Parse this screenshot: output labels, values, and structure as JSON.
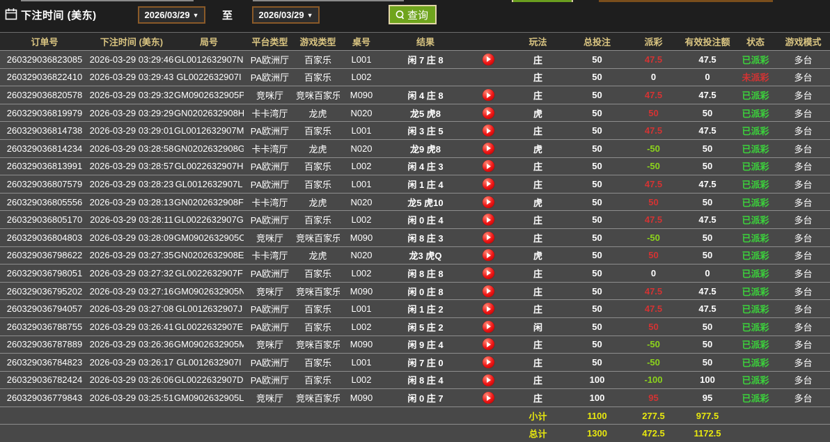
{
  "toolbar": {
    "label": "下注时间 (美东)",
    "date_from": "2026/03/29",
    "to_label": "至",
    "date_to": "2026/03/29",
    "search_label": "查询"
  },
  "colors": {
    "accent_gold": "#d9c481",
    "win_red": "#d43333",
    "loss_green": "#8cd41c",
    "status_paid_green": "#3bd33b",
    "status_unpaid_red": "#d43333",
    "summary_yellow": "#e8e80e",
    "button_green": "#6fa41d",
    "date_border_brown": "#8a5a28"
  },
  "table": {
    "headers": [
      "订单号",
      "下注时间 (美东)",
      "局号",
      "平台类型",
      "游戏类型",
      "桌号",
      "结果",
      "玩法",
      "总投注",
      "派彩",
      "有效投注额",
      "状态",
      "游戏模式"
    ],
    "rows": [
      {
        "order": "260329036823085",
        "time": "2026-03-29 03:29:46",
        "round": "GL0012632907N",
        "platform": "PA欧洲厅",
        "game_type": "百家乐",
        "table_no": "L001",
        "result": "闲 7 庄 8",
        "has_replay": true,
        "play": "庄",
        "bet": "50",
        "payout": "47.5",
        "payout_class": "pos",
        "valid": "47.5",
        "status": "已派彩",
        "status_class": "paid",
        "mode": "多台"
      },
      {
        "order": "260329036822410",
        "time": "2026-03-29 03:29:43",
        "round": "GL0022632907I",
        "platform": "PA欧洲厅",
        "game_type": "百家乐",
        "table_no": "L002",
        "result": "",
        "has_replay": false,
        "play": "庄",
        "bet": "50",
        "payout": "0",
        "payout_class": "zero",
        "valid": "0",
        "status": "未派彩",
        "status_class": "unpaid",
        "mode": "多台"
      },
      {
        "order": "260329036820578",
        "time": "2026-03-29 03:29:32",
        "round": "GM0902632905P",
        "platform": "竞咪厅",
        "game_type": "竞咪百家乐",
        "table_no": "M090",
        "result": "闲 4 庄 8",
        "has_replay": true,
        "play": "庄",
        "bet": "50",
        "payout": "47.5",
        "payout_class": "pos",
        "valid": "47.5",
        "status": "已派彩",
        "status_class": "paid",
        "mode": "多台"
      },
      {
        "order": "260329036819979",
        "time": "2026-03-29 03:29:29",
        "round": "GN0202632908H",
        "platform": "卡卡湾厅",
        "game_type": "龙虎",
        "table_no": "N020",
        "result": "龙5 虎8",
        "has_replay": true,
        "play": "虎",
        "bet": "50",
        "payout": "50",
        "payout_class": "pos",
        "valid": "50",
        "status": "已派彩",
        "status_class": "paid",
        "mode": "多台"
      },
      {
        "order": "260329036814738",
        "time": "2026-03-29 03:29:01",
        "round": "GL0012632907M",
        "platform": "PA欧洲厅",
        "game_type": "百家乐",
        "table_no": "L001",
        "result": "闲 3 庄 5",
        "has_replay": true,
        "play": "庄",
        "bet": "50",
        "payout": "47.5",
        "payout_class": "pos",
        "valid": "47.5",
        "status": "已派彩",
        "status_class": "paid",
        "mode": "多台"
      },
      {
        "order": "260329036814234",
        "time": "2026-03-29 03:28:58",
        "round": "GN0202632908G",
        "platform": "卡卡湾厅",
        "game_type": "龙虎",
        "table_no": "N020",
        "result": "龙9 虎8",
        "has_replay": true,
        "play": "虎",
        "bet": "50",
        "payout": "-50",
        "payout_class": "neg",
        "valid": "50",
        "status": "已派彩",
        "status_class": "paid",
        "mode": "多台"
      },
      {
        "order": "260329036813991",
        "time": "2026-03-29 03:28:57",
        "round": "GL0022632907H",
        "platform": "PA欧洲厅",
        "game_type": "百家乐",
        "table_no": "L002",
        "result": "闲 4 庄 3",
        "has_replay": true,
        "play": "庄",
        "bet": "50",
        "payout": "-50",
        "payout_class": "neg",
        "valid": "50",
        "status": "已派彩",
        "status_class": "paid",
        "mode": "多台"
      },
      {
        "order": "260329036807579",
        "time": "2026-03-29 03:28:23",
        "round": "GL0012632907L",
        "platform": "PA欧洲厅",
        "game_type": "百家乐",
        "table_no": "L001",
        "result": "闲 1 庄 4",
        "has_replay": true,
        "play": "庄",
        "bet": "50",
        "payout": "47.5",
        "payout_class": "pos",
        "valid": "47.5",
        "status": "已派彩",
        "status_class": "paid",
        "mode": "多台"
      },
      {
        "order": "260329036805556",
        "time": "2026-03-29 03:28:13",
        "round": "GN0202632908F",
        "platform": "卡卡湾厅",
        "game_type": "龙虎",
        "table_no": "N020",
        "result": "龙5 虎10",
        "has_replay": true,
        "play": "虎",
        "bet": "50",
        "payout": "50",
        "payout_class": "pos",
        "valid": "50",
        "status": "已派彩",
        "status_class": "paid",
        "mode": "多台"
      },
      {
        "order": "260329036805170",
        "time": "2026-03-29 03:28:11",
        "round": "GL0022632907G",
        "platform": "PA欧洲厅",
        "game_type": "百家乐",
        "table_no": "L002",
        "result": "闲 0 庄 4",
        "has_replay": true,
        "play": "庄",
        "bet": "50",
        "payout": "47.5",
        "payout_class": "pos",
        "valid": "47.5",
        "status": "已派彩",
        "status_class": "paid",
        "mode": "多台"
      },
      {
        "order": "260329036804803",
        "time": "2026-03-29 03:28:09",
        "round": "GM0902632905O",
        "platform": "竞咪厅",
        "game_type": "竞咪百家乐",
        "table_no": "M090",
        "result": "闲 8 庄 3",
        "has_replay": true,
        "play": "庄",
        "bet": "50",
        "payout": "-50",
        "payout_class": "neg",
        "valid": "50",
        "status": "已派彩",
        "status_class": "paid",
        "mode": "多台"
      },
      {
        "order": "260329036798622",
        "time": "2026-03-29 03:27:35",
        "round": "GN0202632908E",
        "platform": "卡卡湾厅",
        "game_type": "龙虎",
        "table_no": "N020",
        "result": "龙3 虎Q",
        "has_replay": true,
        "play": "虎",
        "bet": "50",
        "payout": "50",
        "payout_class": "pos",
        "valid": "50",
        "status": "已派彩",
        "status_class": "paid",
        "mode": "多台"
      },
      {
        "order": "260329036798051",
        "time": "2026-03-29 03:27:32",
        "round": "GL0022632907F",
        "platform": "PA欧洲厅",
        "game_type": "百家乐",
        "table_no": "L002",
        "result": "闲 8 庄 8",
        "has_replay": true,
        "play": "庄",
        "bet": "50",
        "payout": "0",
        "payout_class": "zero",
        "valid": "0",
        "status": "已派彩",
        "status_class": "paid",
        "mode": "多台"
      },
      {
        "order": "260329036795202",
        "time": "2026-03-29 03:27:16",
        "round": "GM0902632905N",
        "platform": "竞咪厅",
        "game_type": "竞咪百家乐",
        "table_no": "M090",
        "result": "闲 0 庄 8",
        "has_replay": true,
        "play": "庄",
        "bet": "50",
        "payout": "47.5",
        "payout_class": "pos",
        "valid": "47.5",
        "status": "已派彩",
        "status_class": "paid",
        "mode": "多台"
      },
      {
        "order": "260329036794057",
        "time": "2026-03-29 03:27:08",
        "round": "GL0012632907J",
        "platform": "PA欧洲厅",
        "game_type": "百家乐",
        "table_no": "L001",
        "result": "闲 1 庄 2",
        "has_replay": true,
        "play": "庄",
        "bet": "50",
        "payout": "47.5",
        "payout_class": "pos",
        "valid": "47.5",
        "status": "已派彩",
        "status_class": "paid",
        "mode": "多台"
      },
      {
        "order": "260329036788755",
        "time": "2026-03-29 03:26:41",
        "round": "GL0022632907E",
        "platform": "PA欧洲厅",
        "game_type": "百家乐",
        "table_no": "L002",
        "result": "闲 5 庄 2",
        "has_replay": true,
        "play": "闲",
        "bet": "50",
        "payout": "50",
        "payout_class": "pos",
        "valid": "50",
        "status": "已派彩",
        "status_class": "paid",
        "mode": "多台"
      },
      {
        "order": "260329036787889",
        "time": "2026-03-29 03:26:36",
        "round": "GM0902632905M",
        "platform": "竞咪厅",
        "game_type": "竞咪百家乐",
        "table_no": "M090",
        "result": "闲 9 庄 4",
        "has_replay": true,
        "play": "庄",
        "bet": "50",
        "payout": "-50",
        "payout_class": "neg",
        "valid": "50",
        "status": "已派彩",
        "status_class": "paid",
        "mode": "多台"
      },
      {
        "order": "260329036784823",
        "time": "2026-03-29 03:26:17",
        "round": "GL0012632907I",
        "platform": "PA欧洲厅",
        "game_type": "百家乐",
        "table_no": "L001",
        "result": "闲 7 庄 0",
        "has_replay": true,
        "play": "庄",
        "bet": "50",
        "payout": "-50",
        "payout_class": "neg",
        "valid": "50",
        "status": "已派彩",
        "status_class": "paid",
        "mode": "多台"
      },
      {
        "order": "260329036782424",
        "time": "2026-03-29 03:26:06",
        "round": "GL0022632907D",
        "platform": "PA欧洲厅",
        "game_type": "百家乐",
        "table_no": "L002",
        "result": "闲 8 庄 4",
        "has_replay": true,
        "play": "庄",
        "bet": "100",
        "payout": "-100",
        "payout_class": "neg",
        "valid": "100",
        "status": "已派彩",
        "status_class": "paid",
        "mode": "多台"
      },
      {
        "order": "260329036779843",
        "time": "2026-03-29 03:25:51",
        "round": "GM0902632905L",
        "platform": "竞咪厅",
        "game_type": "竞咪百家乐",
        "table_no": "M090",
        "result": "闲 0 庄 7",
        "has_replay": true,
        "play": "庄",
        "bet": "100",
        "payout": "95",
        "payout_class": "pos",
        "valid": "95",
        "status": "已派彩",
        "status_class": "paid",
        "mode": "多台"
      }
    ],
    "subtotal": {
      "label": "小计",
      "bet": "1100",
      "payout": "277.5",
      "valid": "977.5"
    },
    "total": {
      "label": "总计",
      "bet": "1300",
      "payout": "472.5",
      "valid": "1172.5"
    }
  }
}
